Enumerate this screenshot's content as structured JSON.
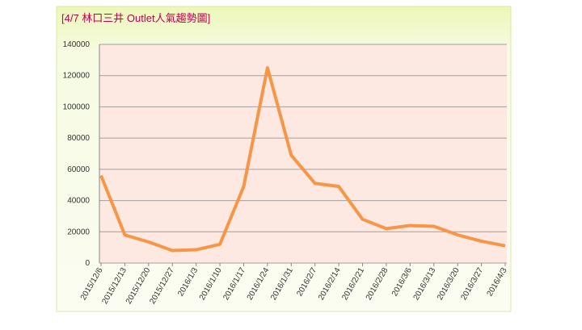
{
  "chart_data": {
    "type": "line",
    "title": "[4/7 林口三井 Outlet人氣趨勢圖]",
    "categories": [
      "2015/12/6",
      "2015/12/13",
      "2015/12/20",
      "2015/12/27",
      "2016/1/3",
      "2016/1/10",
      "2016/1/17",
      "2016/1/24",
      "2016/1/31",
      "2016/2/7",
      "2016/2/14",
      "2016/2/21",
      "2016/2/28",
      "2016/3/6",
      "2016/3/13",
      "2016/3/20",
      "2016/3/27",
      "2016/4/3"
    ],
    "series": [
      {
        "name": "人氣",
        "color": "#f79646",
        "values": [
          56000,
          18000,
          13500,
          8000,
          8500,
          12000,
          49000,
          125000,
          69000,
          51000,
          49000,
          28000,
          22000,
          24000,
          23500,
          18000,
          14000,
          11000
        ]
      }
    ],
    "ylim": [
      0,
      140000
    ],
    "yticks": [
      0,
      20000,
      40000,
      60000,
      80000,
      100000,
      120000,
      140000
    ],
    "grid": true
  }
}
